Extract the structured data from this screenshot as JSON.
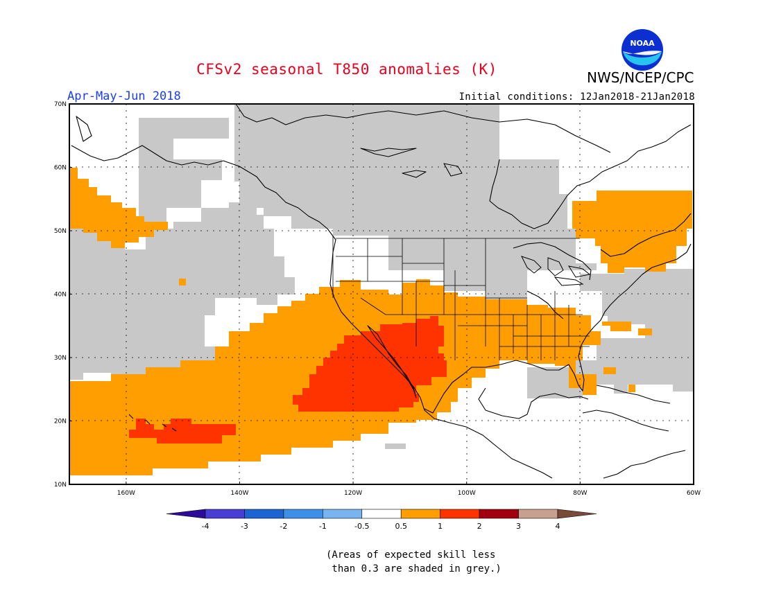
{
  "header": {
    "title": "CFSv2 seasonal T850 anomalies (K)",
    "agency": "NWS/NCEP/CPC",
    "period": "Apr-May-Jun 2018",
    "initial_conditions": "Initial conditions: 12Jan2018-21Jan2018"
  },
  "logo": {
    "icon": "noaa-logo-icon",
    "text": "NOAA"
  },
  "map": {
    "lat_labels": [
      "70N",
      "60N",
      "50N",
      "40N",
      "30N",
      "20N",
      "10N"
    ],
    "lon_labels": [
      "160W",
      "140W",
      "120W",
      "100W",
      "80W",
      "60W"
    ],
    "lon_range": [
      -170,
      -60
    ],
    "lat_range": [
      10,
      70
    ]
  },
  "legend": {
    "labels": [
      "-4",
      "-3",
      "-2",
      "-1",
      "-0.5",
      "0.5",
      "1",
      "2",
      "3",
      "4"
    ],
    "colors": [
      "#2c0a9a",
      "#4a3dd6",
      "#1c64d2",
      "#3e8fe8",
      "#78b4f0",
      "#ffffff",
      "#ff9e00",
      "#ff3300",
      "#a3000f",
      "#c8a090",
      "#7a4a3a"
    ]
  },
  "note": {
    "line1": "(Areas of expected skill less",
    "line2": " than 0.3 are shaded in grey.)"
  },
  "colors": {
    "grey": "#c8c8c8",
    "orange": "#ff9e00",
    "red": "#ff3300"
  }
}
